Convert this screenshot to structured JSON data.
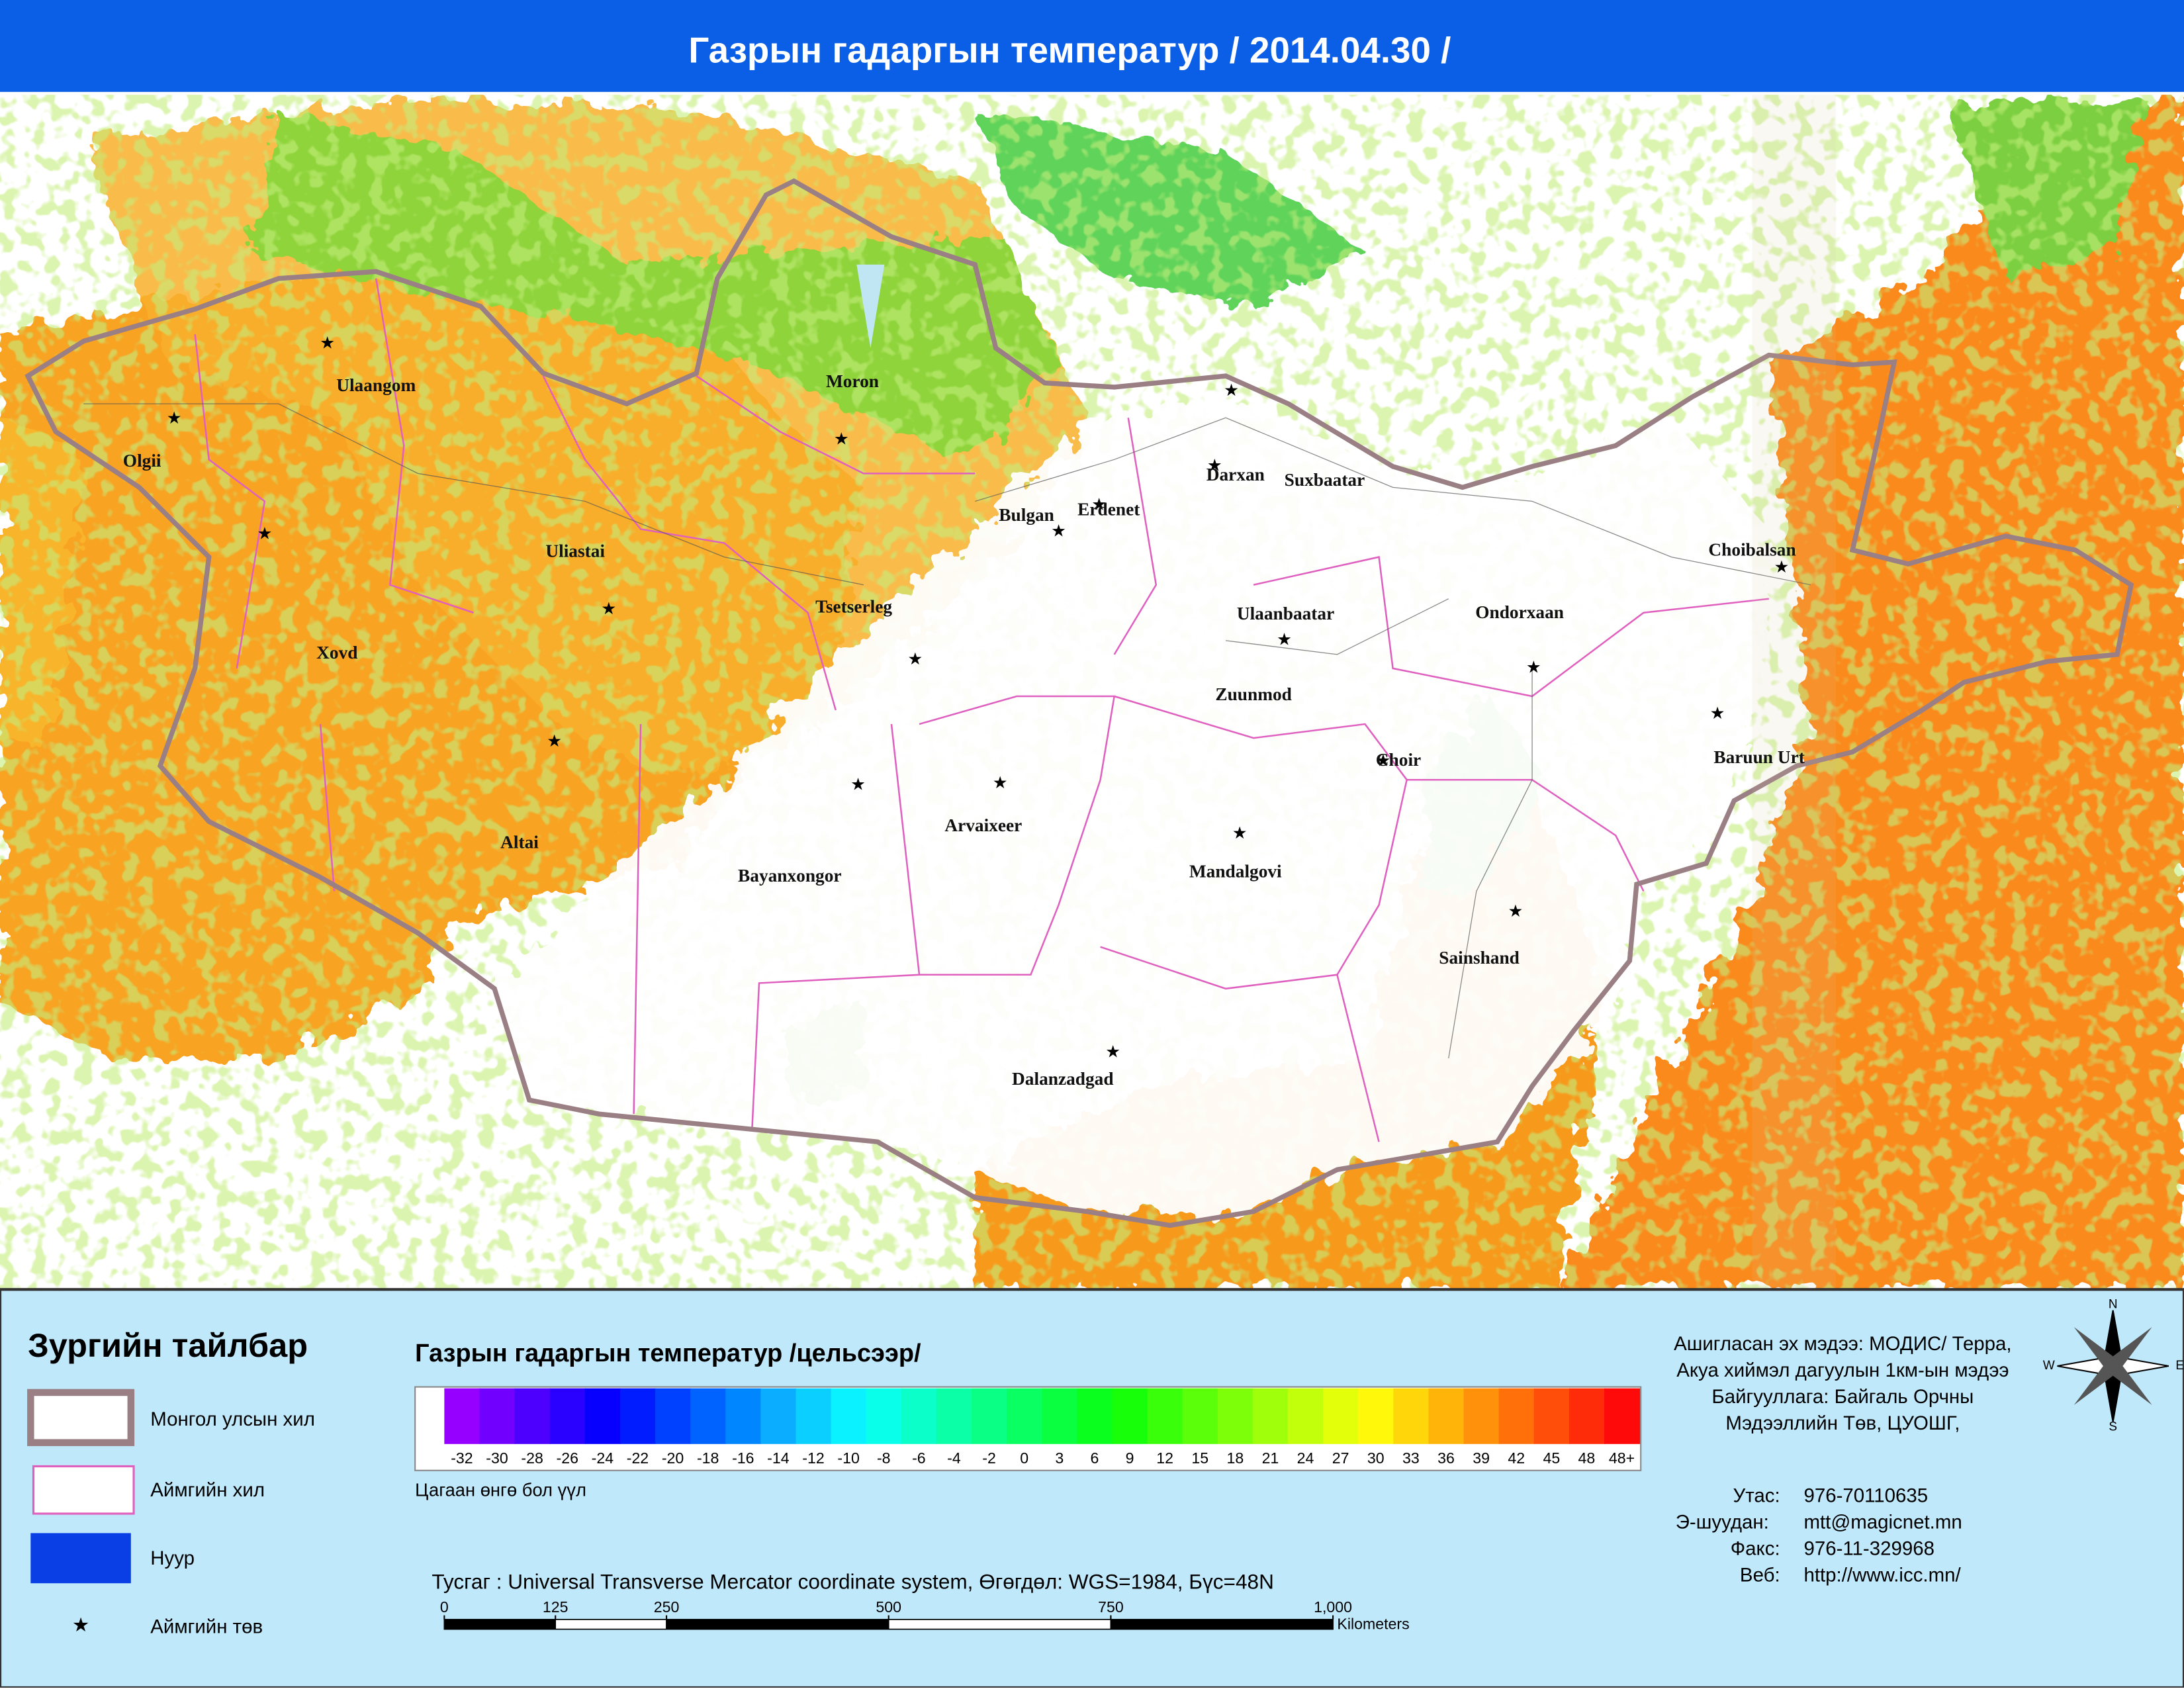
{
  "header": {
    "title": "Газрын гадаргын температур / 2014.04.30 /"
  },
  "map": {
    "places": [
      "Ulaangom",
      "Olgii",
      "Moron",
      "Uliastai",
      "Xovd",
      "Tsetserleg",
      "Altai",
      "Bayanxongor",
      "Arvaixeer",
      "Bulgan",
      "Erdenet",
      "Darxan",
      "Suxbaatar",
      "Ulaanbaatar",
      "Zuunmod",
      "Ondorxaan",
      "Choibalsan",
      "Baruun Urt",
      "Choir",
      "Mandalgovi",
      "Sainshand",
      "Dalanzadgad"
    ]
  },
  "legend": {
    "title": "Зургийн тайлбар",
    "items": [
      "Монгол улсын хил",
      "Аймгийн хил",
      "Нуур",
      "Аймгийн төв"
    ]
  },
  "colorbar": {
    "title": "Газрын гадаргын температур /цельсээр/",
    "labels": [
      -32,
      -30,
      -28,
      -26,
      -24,
      -22,
      -20,
      -18,
      -16,
      -14,
      -12,
      -10,
      -8,
      -6,
      -4,
      -2,
      0,
      3,
      6,
      9,
      12,
      15,
      18,
      21,
      24,
      27,
      30,
      33,
      36,
      39,
      42,
      45,
      48,
      "48+"
    ],
    "note": "Цагаан өнгө бол үүл"
  },
  "projection": "Тусгаг : Universal Transverse Mercator coordinate system, Өгөгдөл: WGS=1984, Бүс=48N",
  "scale": {
    "ticks": [
      0,
      125,
      250,
      500,
      750,
      {
        "value": 1000,
        "label": "1,000"
      }
    ],
    "unit": "Kilometers"
  },
  "info": [
    "Ашигласан эх мэдээ: МОДИС/ Терра,",
    "Акуа хиймэл дагуулын 1км-ын мэдээ",
    "Байгууллага: Байгаль Орчны",
    "Мэдээллийн Төв, ЦУОШГ,"
  ],
  "contacts": [
    [
      "Утас:",
      "976-70110635"
    ],
    [
      "Э-шуудан:",
      "mtt@magicnet.mn"
    ],
    [
      "Факс:",
      "976-11-329968"
    ],
    [
      "Веб:",
      "http://www.icc.mn/"
    ]
  ],
  "compass": [
    "N",
    "E",
    "S",
    "W"
  ]
}
